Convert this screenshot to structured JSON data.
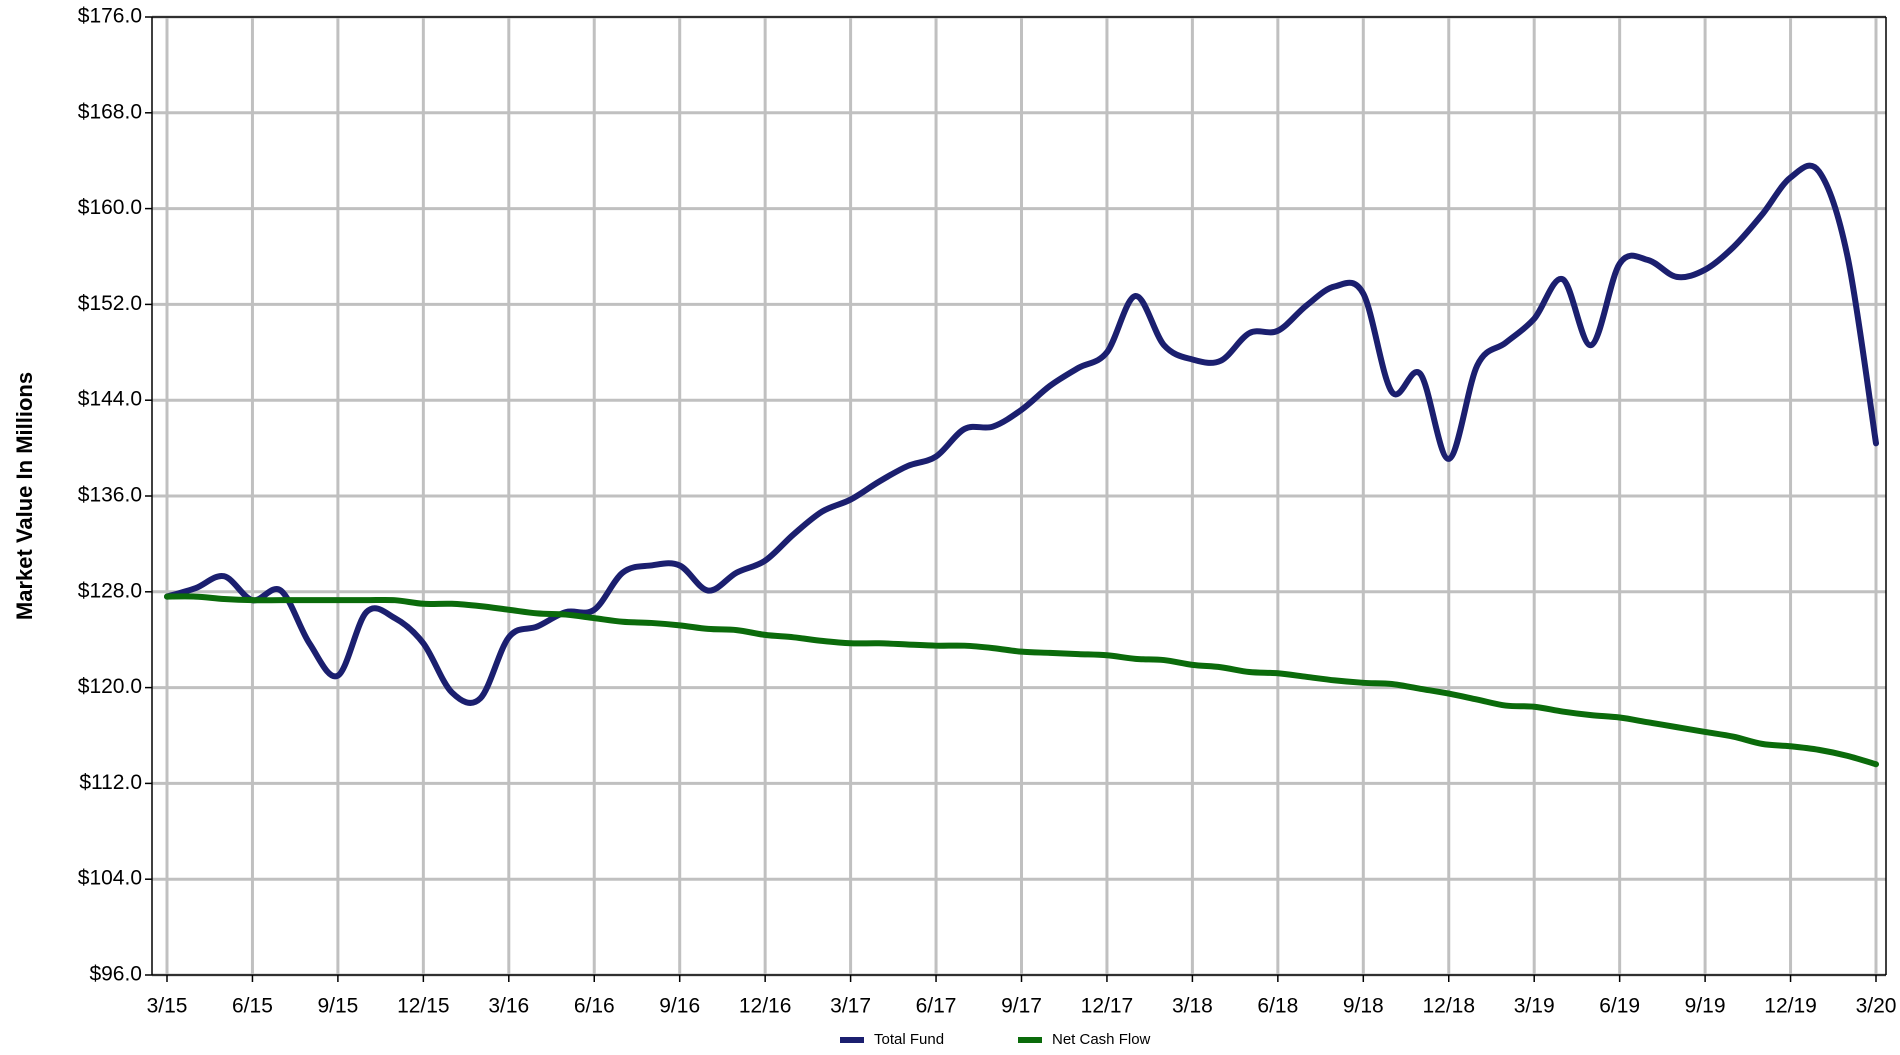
{
  "chart_data": {
    "type": "line",
    "y_label": "Market Value In Millions",
    "categories": [
      "3/15",
      null,
      null,
      "6/15",
      null,
      null,
      "9/15",
      null,
      null,
      "12/15",
      null,
      null,
      "3/16",
      null,
      null,
      "6/16",
      null,
      null,
      "9/16",
      null,
      null,
      "12/16",
      null,
      null,
      "3/17",
      null,
      null,
      "6/17",
      null,
      null,
      "9/17",
      null,
      null,
      "12/17",
      null,
      null,
      "3/18",
      null,
      null,
      "6/18",
      null,
      null,
      "9/18",
      null,
      null,
      "12/18",
      null,
      null,
      "3/19",
      null,
      null,
      "6/19",
      null,
      null,
      "9/19",
      null,
      null,
      "12/19",
      null,
      null,
      "3/20"
    ],
    "series": [
      {
        "name": "Total Fund",
        "color": "#1b1f6f",
        "values": [
          127.6,
          128.3,
          129.3,
          127.3,
          128.1,
          123.7,
          121.0,
          126.3,
          125.8,
          123.7,
          119.6,
          119.1,
          124.2,
          125.1,
          126.3,
          126.5,
          129.6,
          130.2,
          130.2,
          128.1,
          129.6,
          130.6,
          132.8,
          134.7,
          135.7,
          137.2,
          138.5,
          139.3,
          141.6,
          141.8,
          143.2,
          145.2,
          146.7,
          148.0,
          152.7,
          148.6,
          147.4,
          147.3,
          149.6,
          149.8,
          151.9,
          153.5,
          152.9,
          144.7,
          146.2,
          139.1,
          146.9,
          148.8,
          150.8,
          154.1,
          148.6,
          155.4,
          155.7,
          154.3,
          154.9,
          156.8,
          159.5,
          162.6,
          163.1,
          156.0,
          140.4
        ]
      },
      {
        "name": "Net Cash Flow",
        "color": "#0b6b0b",
        "values": [
          127.6,
          127.6,
          127.4,
          127.3,
          127.3,
          127.3,
          127.3,
          127.3,
          127.3,
          127.0,
          127.0,
          126.8,
          126.5,
          126.2,
          126.1,
          125.8,
          125.5,
          125.4,
          125.2,
          124.9,
          124.8,
          124.4,
          124.2,
          123.9,
          123.7,
          123.7,
          123.6,
          123.5,
          123.5,
          123.3,
          123.0,
          122.9,
          122.8,
          122.7,
          122.4,
          122.3,
          121.9,
          121.7,
          121.3,
          121.2,
          120.9,
          120.6,
          120.4,
          120.3,
          119.9,
          119.5,
          119.0,
          118.5,
          118.4,
          118.0,
          117.7,
          117.5,
          117.1,
          116.7,
          116.3,
          115.9,
          115.3,
          115.1,
          114.8,
          114.3,
          113.6
        ]
      }
    ],
    "ylim": [
      96,
      176
    ],
    "yticks": [
      {
        "value": 96,
        "label": "$96.0"
      },
      {
        "value": 104,
        "label": "$104.0"
      },
      {
        "value": 112,
        "label": "$112.0"
      },
      {
        "value": 120,
        "label": "$120.0"
      },
      {
        "value": 128,
        "label": "$128.0"
      },
      {
        "value": 136,
        "label": "$136.0"
      },
      {
        "value": 144,
        "label": "$144.0"
      },
      {
        "value": 152,
        "label": "$152.0"
      },
      {
        "value": 160,
        "label": "$160.0"
      },
      {
        "value": 168,
        "label": "$168.0"
      },
      {
        "value": 176,
        "label": "$176.0"
      }
    ],
    "grid": true,
    "legend": "bottom"
  }
}
